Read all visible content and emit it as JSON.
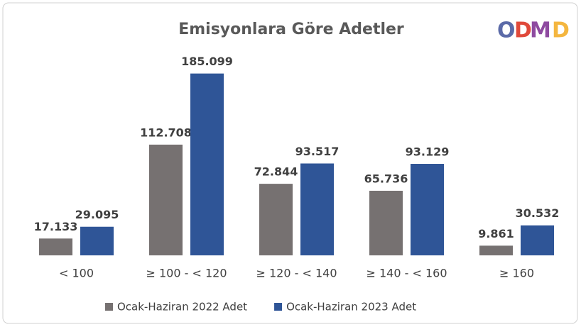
{
  "logo": "ODMD",
  "chart_data": {
    "type": "bar",
    "title": "Emisyonlara Göre Adetler",
    "categories": [
      "< 100",
      "≥ 100 - < 120",
      "≥ 120 - < 140",
      "≥ 140 - < 160",
      "≥  160"
    ],
    "series": [
      {
        "name": "Ocak-Haziran 2022 Adet",
        "color": "#767171",
        "values": [
          17133,
          112708,
          72844,
          65736,
          9861
        ],
        "value_labels": [
          "17.133",
          "112.708",
          "72.844",
          "65.736",
          "9.861"
        ]
      },
      {
        "name": "Ocak-Haziran 2023 Adet",
        "color": "#2f5597",
        "values": [
          29095,
          185099,
          93517,
          93129,
          30532
        ],
        "value_labels": [
          "29.095",
          "185.099",
          "93.517",
          "93.129",
          "30.532"
        ]
      }
    ],
    "ylim": [
      0,
      200000
    ],
    "legend": "bottom"
  }
}
